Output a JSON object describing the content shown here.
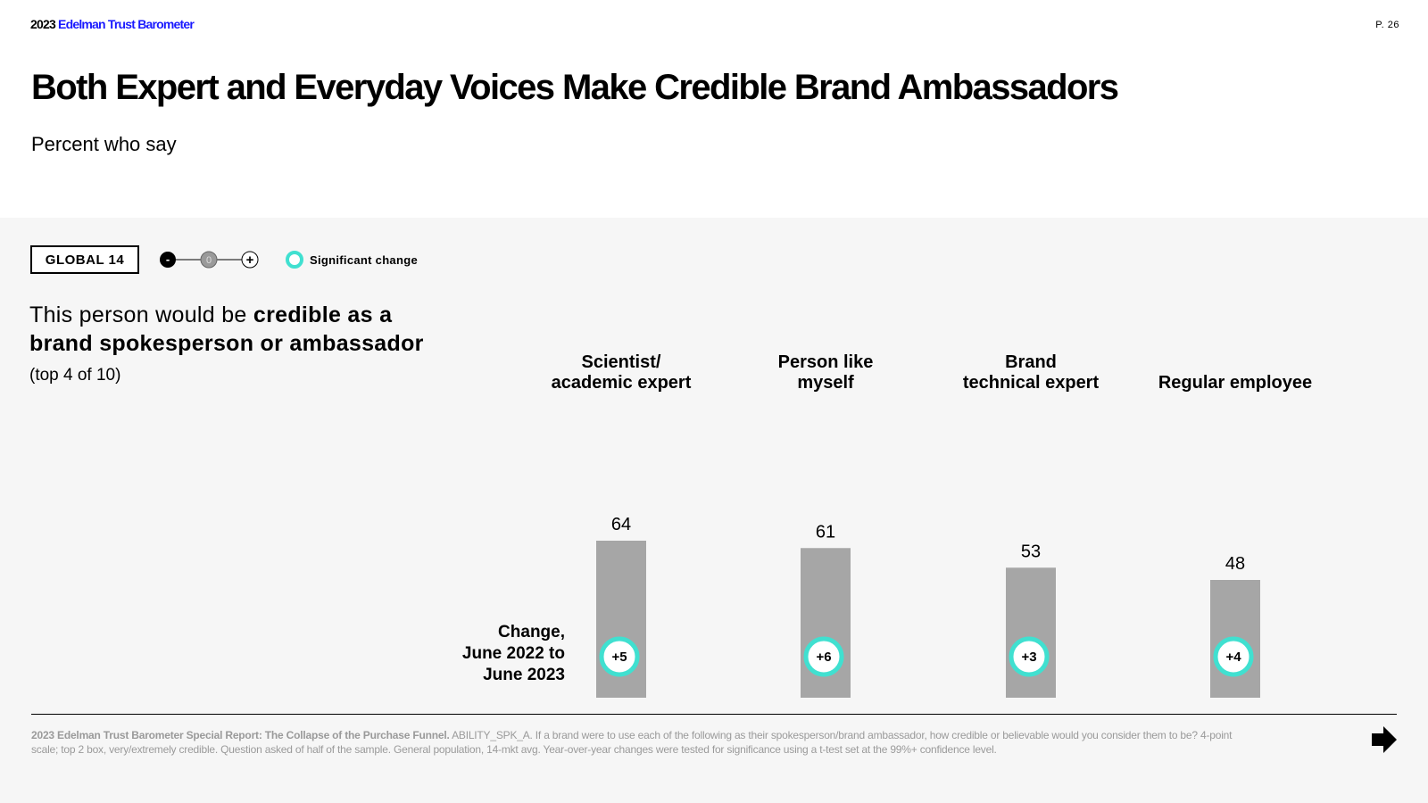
{
  "header": {
    "year": "2023",
    "brand_name": "Edelman Trust Barometer",
    "page_number": "P. 26"
  },
  "title": "Both Expert and Everyday Voices Make Credible Brand Ambassadors",
  "subtitle": "Percent who say",
  "filter": {
    "label": "GLOBAL 14"
  },
  "legend": {
    "minus": "-",
    "zero": "0",
    "plus": "+",
    "significant_change": "Significant change"
  },
  "question": {
    "prefix": "This person would be ",
    "bold": "credible as a brand spokesperson or ambassador",
    "note": "(top 4 of 10)"
  },
  "change_label": {
    "line1": "Change,",
    "line2": "June 2022 to",
    "line3": "June 2023"
  },
  "colors": {
    "bar": "#a6a6a6",
    "significant": "#40e0d0",
    "brand_blue": "#1a1aff"
  },
  "chart_data": {
    "type": "bar",
    "title": "This person would be credible as a brand spokesperson or ambassador",
    "ylabel": "Percent who say",
    "ylim": [
      0,
      100
    ],
    "categories": [
      {
        "line1": "Scientist/",
        "line2": "academic expert"
      },
      {
        "line1": "Person like",
        "line2": "myself"
      },
      {
        "line1": "Brand",
        "line2": "technical expert"
      },
      {
        "line1": "",
        "line2": "Regular employee"
      }
    ],
    "values": [
      64,
      61,
      53,
      48
    ],
    "changes": [
      "+5",
      "+6",
      "+3",
      "+4"
    ],
    "significant": [
      true,
      true,
      true,
      true
    ]
  },
  "footnote": {
    "source": "2023 Edelman Trust Barometer Special Report: The Collapse of the Purchase Funnel.",
    "text": " ABILITY_SPK_A. If a brand were to use each of the following as their spokesperson/brand ambassador, how credible or believable would you consider them to be? 4-point scale; top 2 box, very/extremely credible. Question asked of half of the sample. General population, 14-mkt avg. Year-over-year changes were tested for significance using a t-test set at the 99%+ confidence level."
  }
}
